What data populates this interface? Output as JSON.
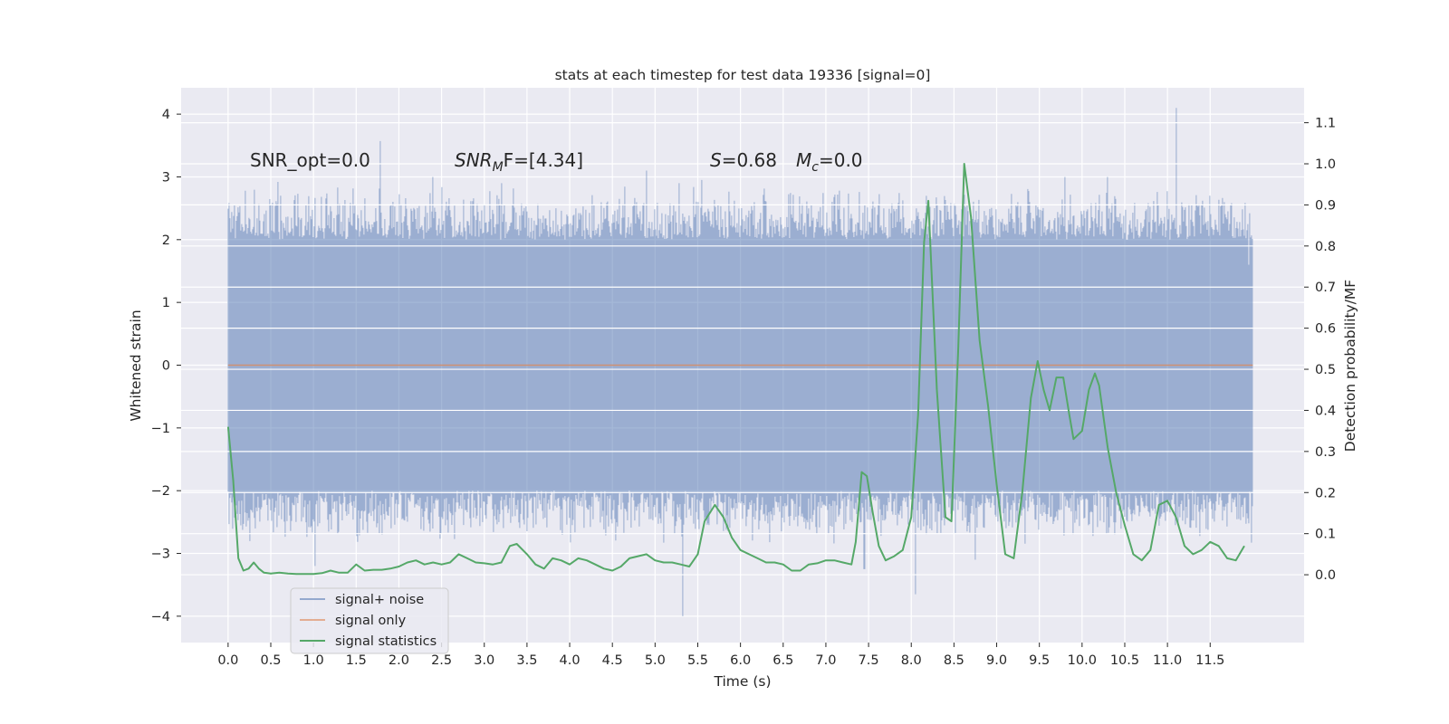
{
  "chart_data": {
    "type": "line",
    "title": "stats at each timestep for test data 19336 [signal=0]",
    "xlabel": "Time (s)",
    "ylabel": "Whitened strain",
    "y2label": "Detection probability/MF",
    "xlim": [
      -0.55,
      12.6
    ],
    "ylim": [
      -4.42,
      4.42
    ],
    "y2lim": [
      -0.165,
      1.185
    ],
    "x_ticks": [
      0.0,
      0.5,
      1.0,
      1.5,
      2.0,
      2.5,
      3.0,
      3.5,
      4.0,
      4.5,
      5.0,
      5.5,
      6.0,
      6.5,
      7.0,
      7.5,
      8.0,
      8.5,
      9.0,
      9.5,
      10.0,
      10.5,
      11.0,
      11.5
    ],
    "x_tick_labels": [
      "0.0",
      "0.5",
      "1.0",
      "1.5",
      "2.0",
      "2.5",
      "3.0",
      "3.5",
      "4.0",
      "4.5",
      "5.0",
      "5.5",
      "6.0",
      "6.5",
      "7.0",
      "7.5",
      "8.0",
      "8.5",
      "9.0",
      "9.5",
      "10.0",
      "10.5",
      "11.0",
      "11.5"
    ],
    "y_ticks": [
      4,
      3,
      2,
      1,
      0,
      -1,
      -2,
      -3,
      -4
    ],
    "y_tick_labels": [
      "4",
      "3",
      "2",
      "1",
      "0",
      "−1",
      "−2",
      "−3",
      "−4"
    ],
    "y2_ticks": [
      1.1,
      1.0,
      0.9,
      0.8,
      0.7,
      0.6,
      0.5,
      0.4,
      0.3,
      0.2,
      0.1,
      0.0
    ],
    "y2_tick_labels": [
      "1.1",
      "1.0",
      "0.9",
      "0.8",
      "0.7",
      "0.6",
      "0.5",
      "0.4",
      "0.3",
      "0.2",
      "0.1",
      "0.0"
    ],
    "grid": true,
    "legend_position": "bottom-left",
    "colors": {
      "plot_background": "#eaeaf2",
      "grid": "#ffffff",
      "signal_noise": "#4c72b0",
      "signal_only": "#dd8452",
      "statistics": "#55a868"
    },
    "series": [
      {
        "name": "signal+ noise",
        "axis": "left",
        "x_range": [
          0.0,
          12.0
        ],
        "envelope_peaks": [
          {
            "x": 0.1,
            "y": 2.3
          },
          {
            "x": 0.2,
            "y": 2.78
          },
          {
            "x": 0.58,
            "y": 2.92
          },
          {
            "x": 1.78,
            "y": 3.57
          },
          {
            "x": 1.8,
            "y": -2.7
          },
          {
            "x": 2.4,
            "y": 3.0
          },
          {
            "x": 3.2,
            "y": 2.9
          },
          {
            "x": 4.9,
            "y": 3.1
          },
          {
            "x": 5.32,
            "y": -4.0
          },
          {
            "x": 5.28,
            "y": 2.9
          },
          {
            "x": 5.55,
            "y": 2.95
          },
          {
            "x": 1.02,
            "y": -3.2
          },
          {
            "x": 8.05,
            "y": -3.65
          },
          {
            "x": 8.75,
            "y": -3.1
          },
          {
            "x": 7.45,
            "y": -3.25
          },
          {
            "x": 11.1,
            "y": 4.1
          },
          {
            "x": 10.3,
            "y": 3.0
          },
          {
            "x": 9.8,
            "y": 3.0
          },
          {
            "x": 11.5,
            "y": 2.7
          },
          {
            "x": 11.95,
            "y": 1.6
          }
        ],
        "typical_amplitude": 2.0
      },
      {
        "name": "signal only",
        "axis": "left",
        "x": [
          0.0,
          12.0
        ],
        "y": [
          0.0,
          0.0
        ]
      },
      {
        "name": "signal statistics",
        "axis": "right",
        "x": [
          0.0,
          0.06,
          0.12,
          0.18,
          0.24,
          0.3,
          0.36,
          0.42,
          0.5,
          0.6,
          0.7,
          0.8,
          0.9,
          1.0,
          1.1,
          1.2,
          1.3,
          1.4,
          1.5,
          1.6,
          1.7,
          1.8,
          1.9,
          2.0,
          2.1,
          2.2,
          2.3,
          2.4,
          2.5,
          2.6,
          2.7,
          2.8,
          2.9,
          3.0,
          3.1,
          3.2,
          3.3,
          3.38,
          3.5,
          3.6,
          3.7,
          3.8,
          3.9,
          4.0,
          4.1,
          4.2,
          4.3,
          4.4,
          4.5,
          4.6,
          4.7,
          4.8,
          4.9,
          5.0,
          5.1,
          5.2,
          5.3,
          5.4,
          5.5,
          5.58,
          5.7,
          5.8,
          5.9,
          6.0,
          6.1,
          6.2,
          6.3,
          6.4,
          6.5,
          6.6,
          6.7,
          6.8,
          6.9,
          7.0,
          7.1,
          7.2,
          7.3,
          7.35,
          7.42,
          7.48,
          7.55,
          7.62,
          7.7,
          7.8,
          7.9,
          8.0,
          8.08,
          8.15,
          8.2,
          8.3,
          8.4,
          8.47,
          8.55,
          8.62,
          8.7,
          8.8,
          8.9,
          9.0,
          9.1,
          9.2,
          9.3,
          9.4,
          9.48,
          9.55,
          9.62,
          9.7,
          9.78,
          9.85,
          9.9,
          10.0,
          10.08,
          10.15,
          10.2,
          10.3,
          10.4,
          10.5,
          10.6,
          10.7,
          10.8,
          10.9,
          11.0,
          11.1,
          11.2,
          11.3,
          11.4,
          11.5,
          11.6,
          11.7,
          11.8,
          11.9
        ],
        "y": [
          0.36,
          0.23,
          0.04,
          0.01,
          0.015,
          0.03,
          0.015,
          0.005,
          0.003,
          0.005,
          0.003,
          0.002,
          0.002,
          0.002,
          0.004,
          0.01,
          0.005,
          0.005,
          0.025,
          0.01,
          0.012,
          0.012,
          0.015,
          0.02,
          0.03,
          0.035,
          0.025,
          0.03,
          0.025,
          0.03,
          0.05,
          0.04,
          0.03,
          0.028,
          0.025,
          0.03,
          0.07,
          0.075,
          0.05,
          0.025,
          0.015,
          0.04,
          0.035,
          0.025,
          0.04,
          0.035,
          0.025,
          0.015,
          0.01,
          0.02,
          0.04,
          0.045,
          0.05,
          0.035,
          0.03,
          0.03,
          0.025,
          0.02,
          0.05,
          0.13,
          0.17,
          0.14,
          0.09,
          0.06,
          0.05,
          0.04,
          0.03,
          0.03,
          0.025,
          0.01,
          0.01,
          0.025,
          0.028,
          0.035,
          0.035,
          0.03,
          0.025,
          0.08,
          0.25,
          0.24,
          0.15,
          0.07,
          0.035,
          0.045,
          0.06,
          0.14,
          0.39,
          0.81,
          0.91,
          0.45,
          0.14,
          0.13,
          0.55,
          1.0,
          0.87,
          0.57,
          0.41,
          0.22,
          0.05,
          0.04,
          0.2,
          0.43,
          0.52,
          0.45,
          0.4,
          0.48,
          0.48,
          0.39,
          0.33,
          0.35,
          0.45,
          0.49,
          0.46,
          0.31,
          0.2,
          0.12,
          0.05,
          0.035,
          0.06,
          0.17,
          0.18,
          0.14,
          0.07,
          0.05,
          0.06,
          0.08,
          0.07,
          0.04,
          0.035,
          0.07
        ]
      }
    ],
    "annotations": [
      {
        "label": "SNR_opt",
        "value": "0.0",
        "x": 0.2,
        "y": 3.27
      },
      {
        "label": "SNR_MF",
        "value": "[4.34]",
        "x": 2.6,
        "y": 3.27
      },
      {
        "label": "S",
        "value": "0.68",
        "x": 5.6,
        "y": 3.27
      },
      {
        "label": "M_c",
        "value": "0.0",
        "x": 6.6,
        "y": 3.27
      }
    ],
    "annotation_text": {
      "snr_opt": "SNR_opt=0.0",
      "snr_mf_main": "SNR",
      "snr_mf_sub": "M",
      "snr_mf_rest": "F=[4.34]",
      "s_var": "S",
      "s_rest": "=0.68",
      "mc_main": "M",
      "mc_sub": "c",
      "mc_rest": "=0.0"
    }
  }
}
